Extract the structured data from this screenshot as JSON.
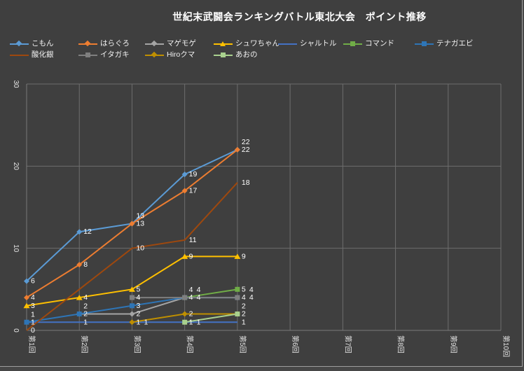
{
  "title": "世紀末武闘会ランキングバトル東北大会　ポイント推移",
  "colors": {
    "background": "#3F3F3F",
    "gridline": "#6E6E6E",
    "axis_line": "#7A7A7A",
    "text": "#FFFFFF",
    "tick_text": "#E6E6E6",
    "frame_border": "#9E9E9E"
  },
  "chart_data": {
    "type": "line",
    "title": "世紀末武闘会ランキングバトル東北大会　ポイント推移",
    "xlabel": "",
    "ylabel": "",
    "categories": [
      "第1回",
      "第2回",
      "第3回",
      "第4回",
      "第5回",
      "第6回",
      "第7回",
      "第8回",
      "第9回",
      "第10回"
    ],
    "y_ticks": [
      0,
      10,
      20,
      30
    ],
    "ylim": [
      0,
      30
    ],
    "grid": true,
    "data_labels": true,
    "legend_position": "top",
    "series": [
      {
        "name": "こもん",
        "color": "#5B9BD5",
        "marker": "diamond",
        "values": [
          6,
          12,
          13,
          19,
          22,
          null,
          null,
          null,
          null,
          null
        ]
      },
      {
        "name": "はらぐろ",
        "color": "#ED7D31",
        "marker": "diamond",
        "values": [
          4,
          8,
          13,
          17,
          22,
          null,
          null,
          null,
          null,
          null
        ]
      },
      {
        "name": "マゲモゲ",
        "color": "#A5A5A5",
        "marker": "diamond",
        "values": [
          null,
          2,
          2,
          4,
          4,
          null,
          null,
          null,
          null,
          null
        ]
      },
      {
        "name": "シュワちゃん",
        "color": "#FFC000",
        "marker": "triangle",
        "values": [
          3,
          4,
          5,
          9,
          9,
          null,
          null,
          null,
          null,
          null
        ]
      },
      {
        "name": "シャルトル",
        "color": "#4472C4",
        "marker": "none",
        "values": [
          1,
          1,
          1,
          1,
          1,
          null,
          null,
          null,
          null,
          null
        ]
      },
      {
        "name": "コマンド",
        "color": "#70AD47",
        "marker": "square",
        "values": [
          null,
          null,
          null,
          4,
          5,
          null,
          null,
          null,
          null,
          null
        ]
      },
      {
        "name": "テナガエビ",
        "color": "#2E75B6",
        "marker": "square",
        "values": [
          1,
          2,
          3,
          4,
          4,
          null,
          null,
          null,
          null,
          null
        ]
      },
      {
        "name": "酸化銀",
        "color": "#9E480E",
        "marker": "none",
        "values": [
          0,
          null,
          10,
          11,
          18,
          null,
          null,
          null,
          null,
          null
        ]
      },
      {
        "name": "イタガキ",
        "color": "#7F7F7F",
        "marker": "square",
        "values": [
          null,
          null,
          4,
          4,
          4,
          null,
          null,
          null,
          null,
          null
        ]
      },
      {
        "name": "Hiroクマ",
        "color": "#BF8F00",
        "marker": "diamond",
        "values": [
          null,
          null,
          1,
          2,
          2,
          null,
          null,
          null,
          null,
          null
        ]
      },
      {
        "name": "あおの",
        "color": "#A9D18E",
        "marker": "square",
        "values": [
          null,
          null,
          null,
          1,
          2,
          null,
          null,
          null,
          null,
          null
        ]
      }
    ]
  }
}
